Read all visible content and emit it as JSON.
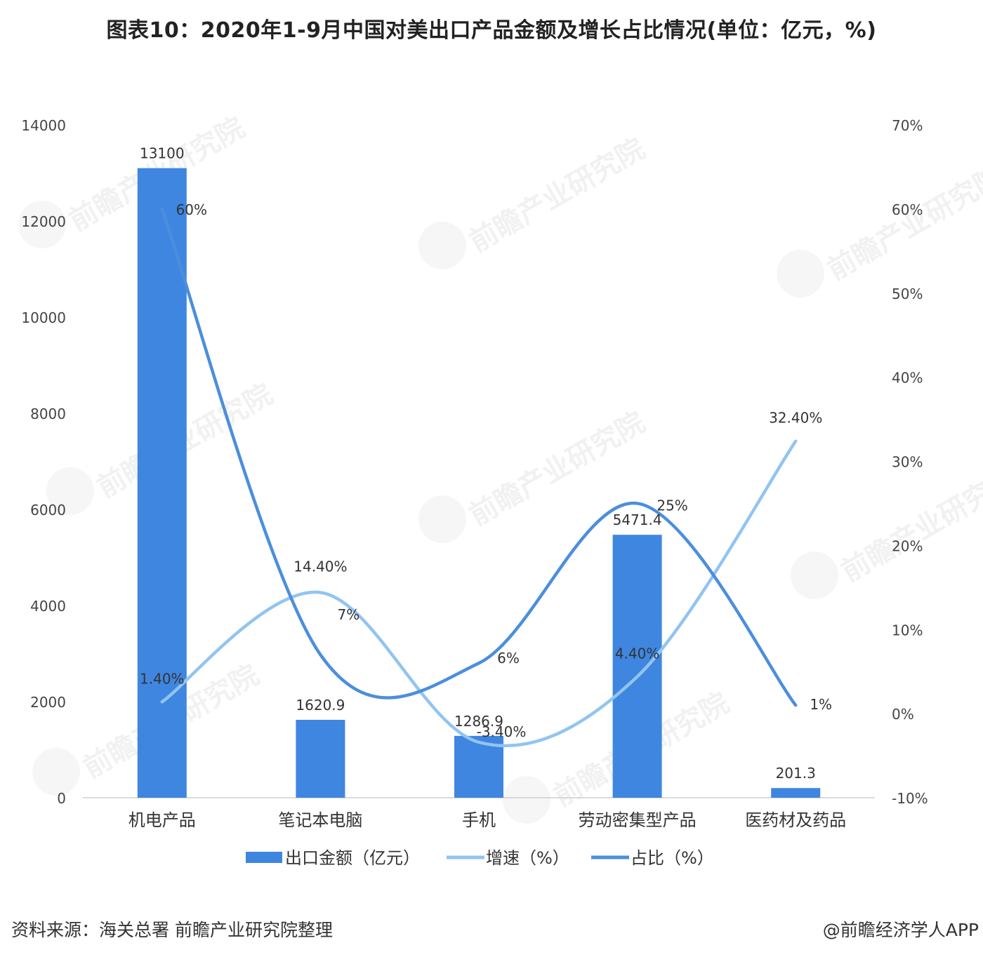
{
  "title": "图表10：2020年1-9月中国对美出口产品金额及增长占比情况(单位：亿元，%)",
  "source": "资料来源：海关总署   前瞻产业研究院整理",
  "credit": "@前瞻经济学人APP",
  "watermark": "前瞻产业研究院",
  "colors": {
    "bar": "#3f86e0",
    "growth_line": "#92c4f0",
    "share_line": "#4b8fdc",
    "axis": "#cfcfcf"
  },
  "chart_data": {
    "type": "bar",
    "title": "",
    "categories": [
      "机电产品",
      "笔记本电脑",
      "手机",
      "劳动密集型产品",
      "医药材及药品"
    ],
    "series": [
      {
        "name": "出口金额（亿元）",
        "type": "bar",
        "axis": "left",
        "values": [
          13100,
          1620.9,
          1286.9,
          5471.4,
          201.3
        ],
        "labels": [
          "13100",
          "1620.9",
          "1286.9",
          "5471.4",
          "201.3"
        ]
      },
      {
        "name": "增速（%）",
        "type": "line",
        "axis": "right",
        "values": [
          1.4,
          14.4,
          -3.4,
          4.4,
          32.4
        ],
        "labels": [
          "1.40%",
          "14.40%",
          "-3.40%",
          "4.40%",
          "32.40%"
        ]
      },
      {
        "name": "占比（%）",
        "type": "line",
        "axis": "right",
        "values": [
          60,
          7,
          6,
          25,
          1
        ],
        "labels": [
          "60%",
          "7%",
          "6%",
          "25%",
          "1%"
        ]
      }
    ],
    "y_left": {
      "range": [
        0,
        14000
      ],
      "ticks": [
        "0",
        "2000",
        "4000",
        "6000",
        "8000",
        "10000",
        "12000",
        "14000"
      ]
    },
    "y_right": {
      "range": [
        -10,
        70
      ],
      "ticks": [
        "-10%",
        "0%",
        "10%",
        "20%",
        "30%",
        "40%",
        "50%",
        "60%",
        "70%"
      ]
    },
    "grid": false,
    "legend": "bottom-center"
  }
}
